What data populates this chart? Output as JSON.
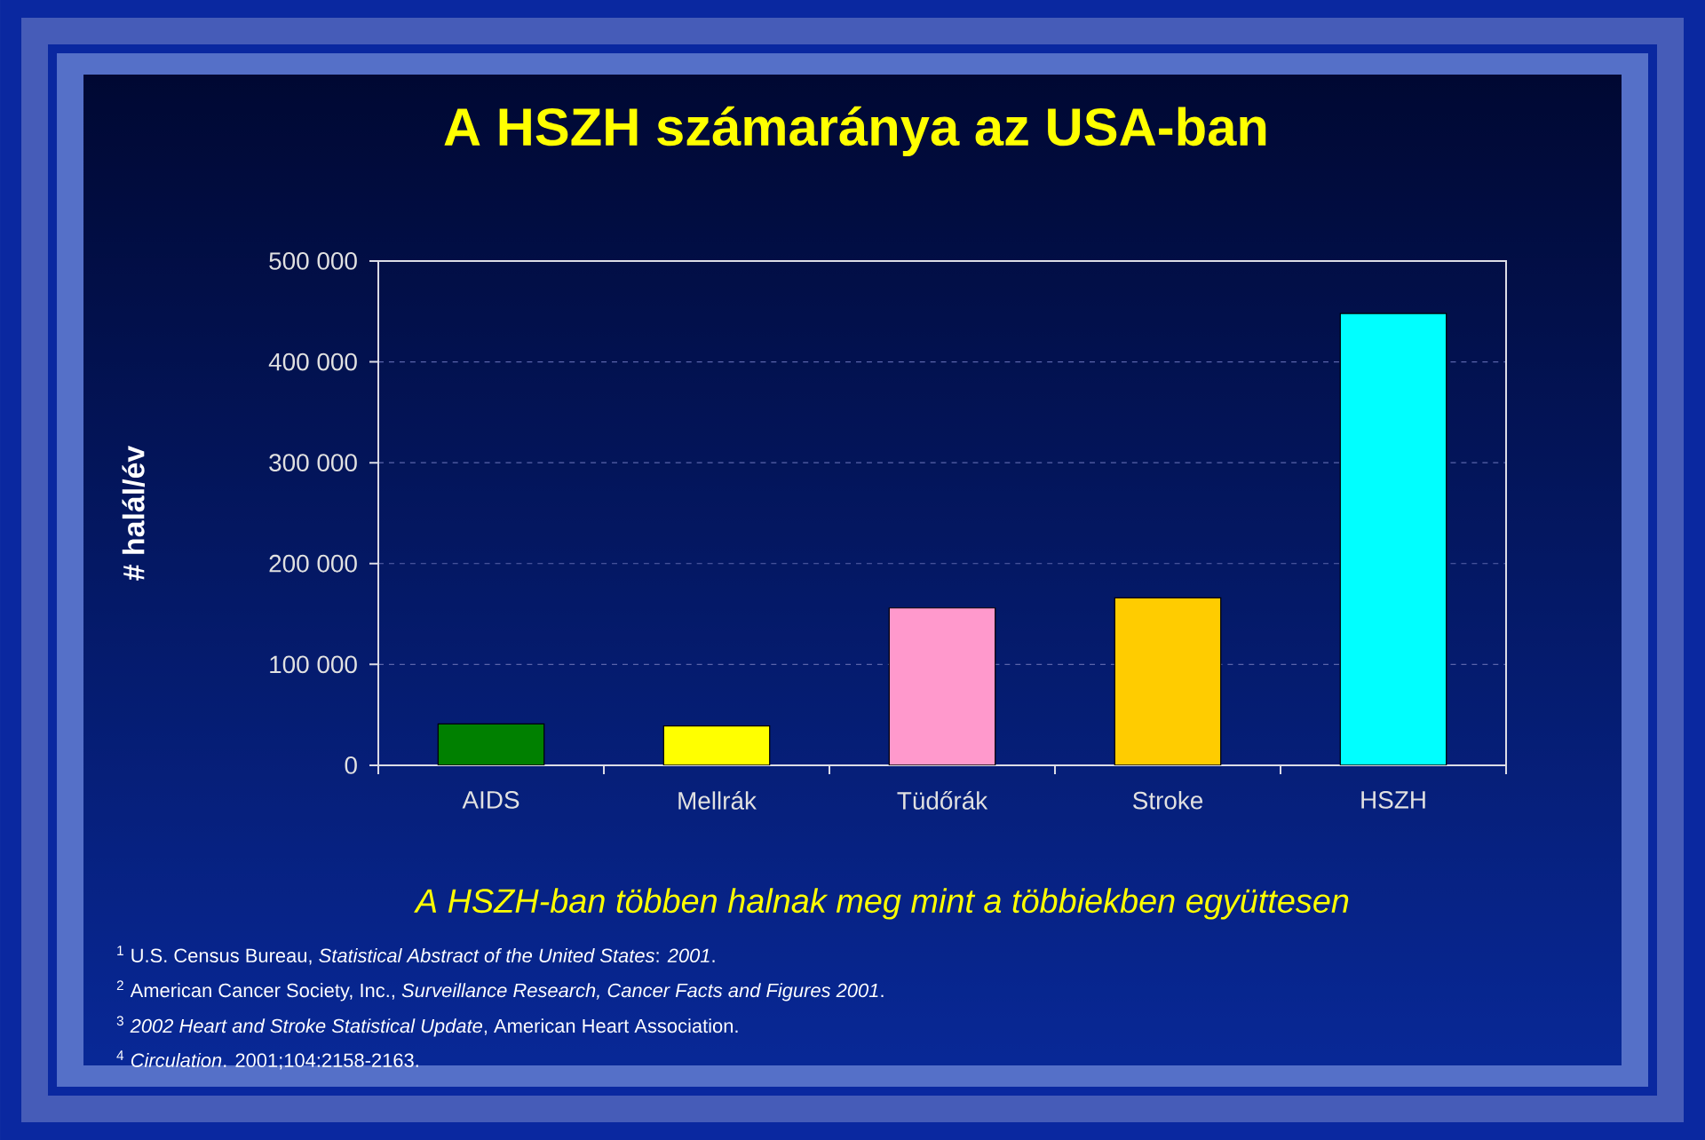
{
  "chart_data": {
    "type": "bar",
    "title": "A HSZH számaránya az USA-ban",
    "ylabel": "# halál/év",
    "categories": [
      "AIDS",
      "Mellrák",
      "Tüdőrák",
      "Stroke",
      "HSZH"
    ],
    "values": [
      41000,
      39000,
      156000,
      166000,
      448000
    ],
    "colors": [
      "#008000",
      "#ffff00",
      "#ff99cc",
      "#ffcc00",
      "#00ffff"
    ],
    "ylim": [
      0,
      500000
    ],
    "yticks": [
      {
        "value": 0,
        "label": "0"
      },
      {
        "value": 100000,
        "label": "100 000"
      },
      {
        "value": 200000,
        "label": "200 000"
      },
      {
        "value": 300000,
        "label": "300 000"
      },
      {
        "value": 400000,
        "label": "400 000"
      },
      {
        "value": 500000,
        "label": "500 000"
      }
    ],
    "grid": "y",
    "annotations": [
      "A HSZH-ban többen halnak meg mint a többiekben együttesen",
      "$^{1}$ U.S. Census Bureau, *Statistical Abstract of the United States*: *2001*.",
      "$^{2}$ American Cancer Society, Inc., *Surveillance Research, Cancer Facts and Figures 2001*.",
      "$^{3}$ *2002 Heart and Stroke Statistical Update*, American Heart Association.",
      "$^{4}$ *Circulation*. 2001;104:2158-2163."
    ]
  }
}
